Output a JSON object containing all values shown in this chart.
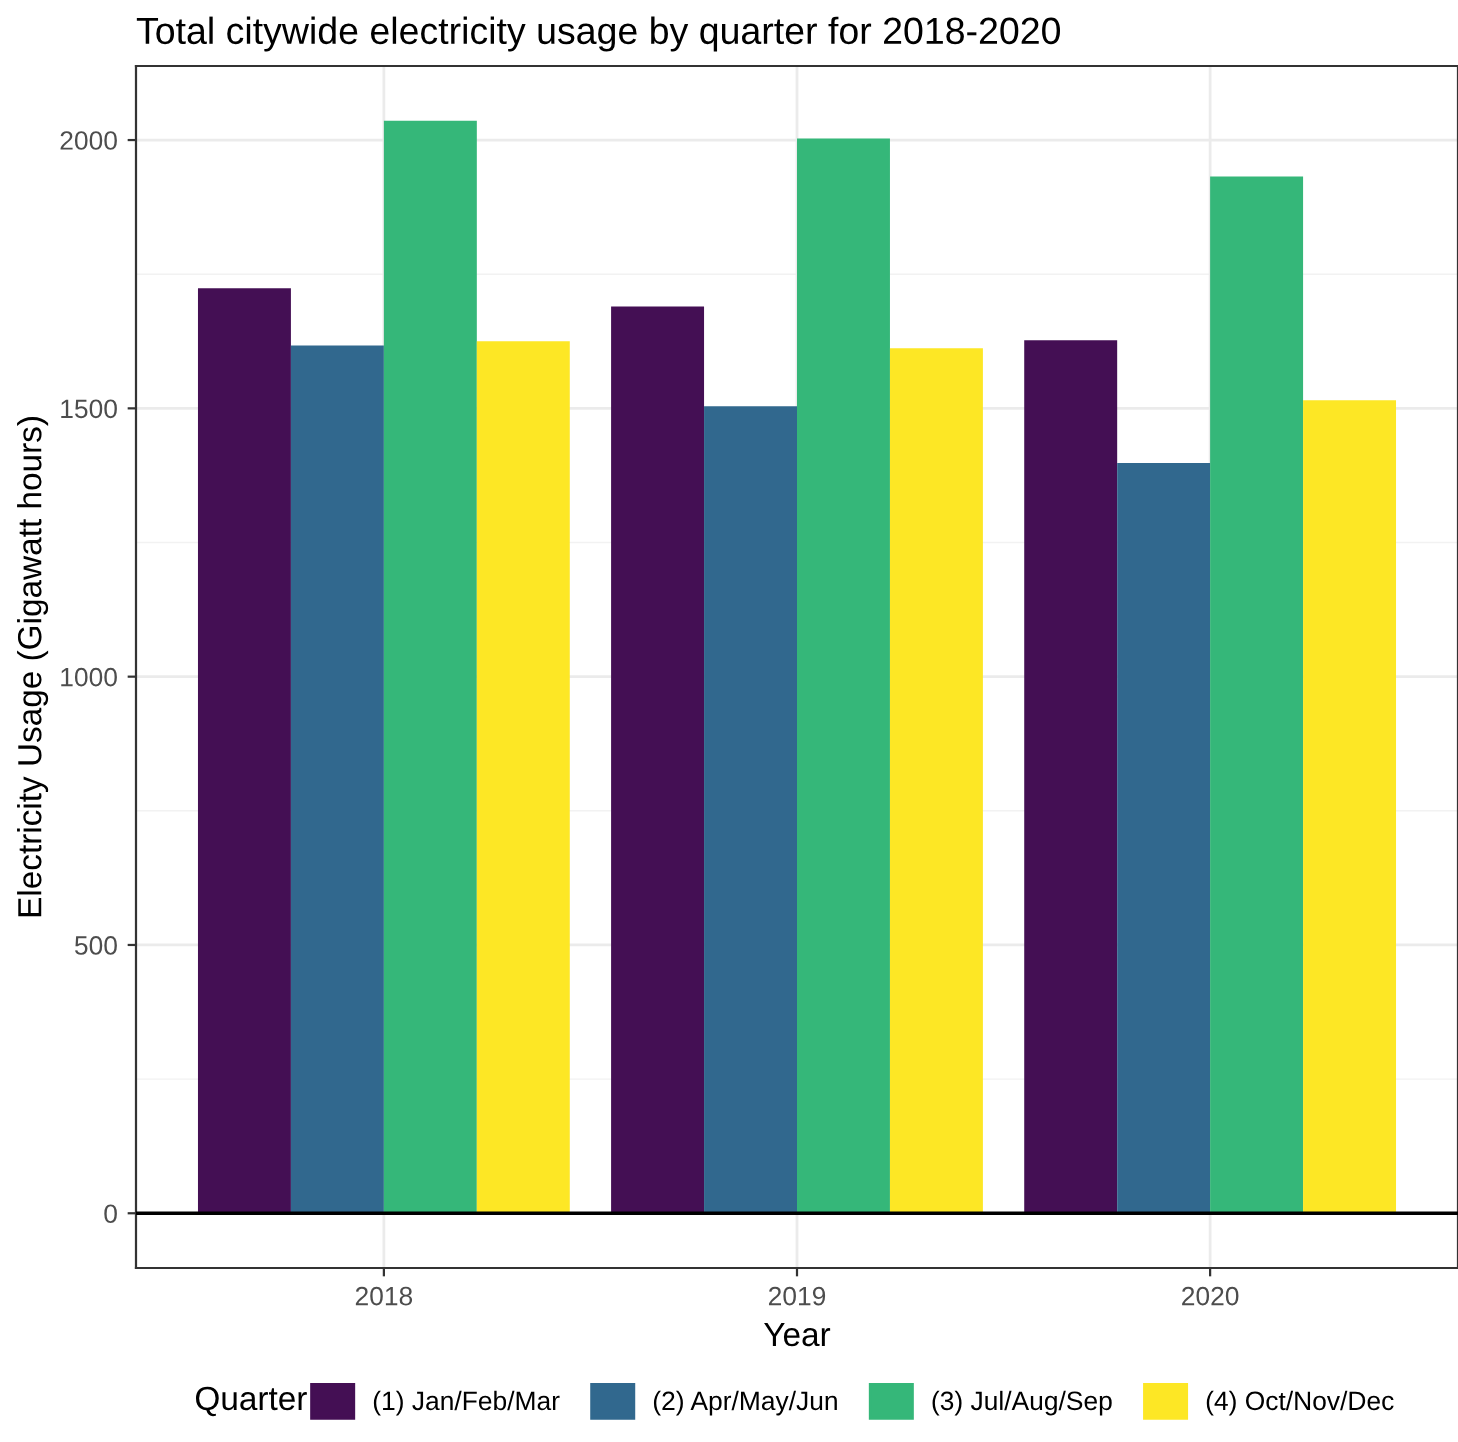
{
  "chart_data": {
    "type": "bar",
    "title": "Total citywide electricity usage by quarter for 2018-2020",
    "xlabel": "Year",
    "ylabel": "Electricity Usage (Gigawatt hours)",
    "legend_title": "Quarter",
    "categories": [
      "2018",
      "2019",
      "2020"
    ],
    "series": [
      {
        "name": "(1) Jan/Feb/Mar",
        "color": "#440f54",
        "values": [
          1724,
          1690,
          1627
        ]
      },
      {
        "name": "(2) Apr/May/Jun",
        "color": "#31688e",
        "values": [
          1617,
          1504,
          1398
        ]
      },
      {
        "name": "(3) Jul/Aug/Sep",
        "color": "#35b779",
        "values": [
          2036,
          2003,
          1932
        ]
      },
      {
        "name": "(4) Oct/Nov/Dec",
        "color": "#fde725",
        "values": [
          1625,
          1612,
          1515
        ]
      }
    ],
    "ylim": [
      -102,
      2138
    ],
    "yticks": [
      0,
      500,
      1000,
      1500,
      2000
    ],
    "grid": true,
    "legend": "bottom",
    "ref_lines": [
      {
        "axis": "y",
        "value": 0,
        "color": "#000000"
      }
    ]
  }
}
